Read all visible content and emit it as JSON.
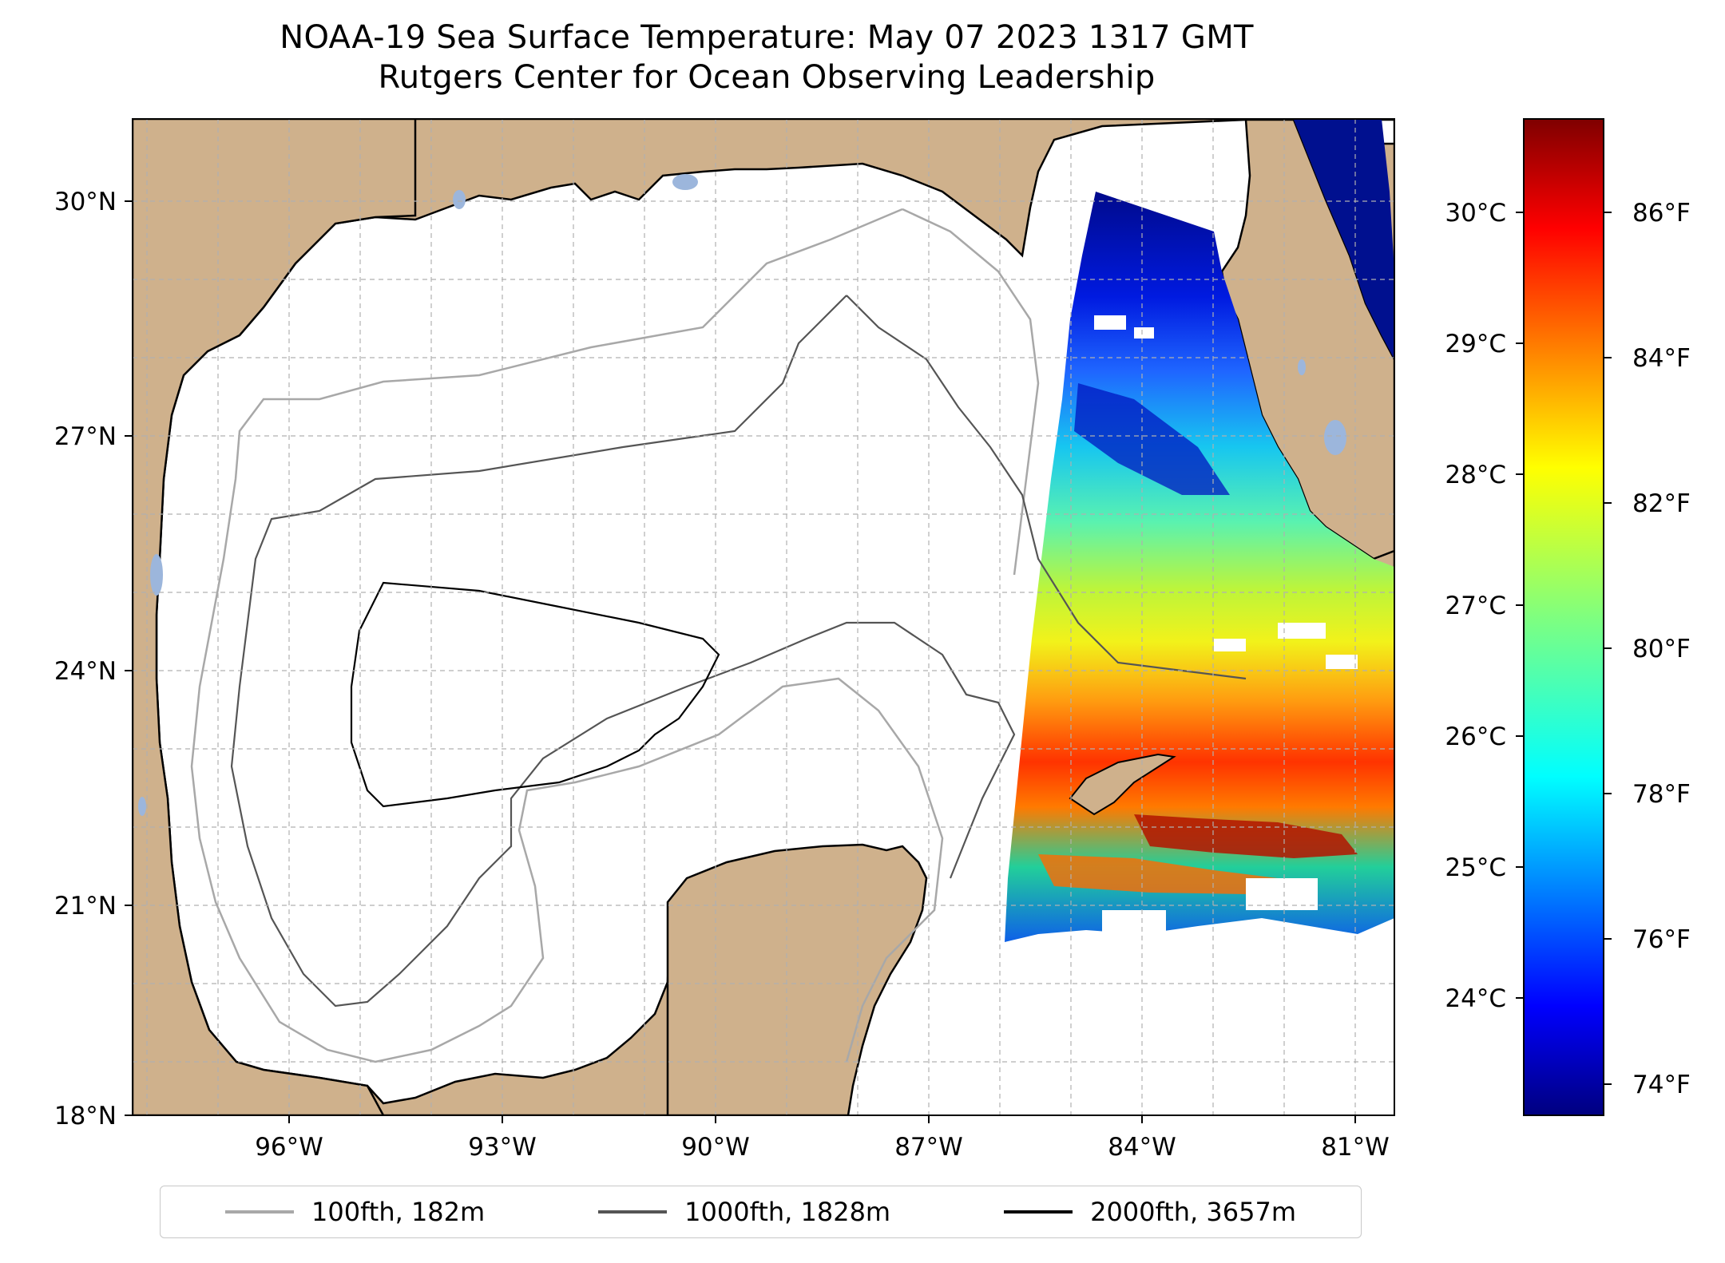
{
  "title": {
    "line1": "NOAA-19 Sea Surface Temperature: May 07 2023 1317 GMT",
    "line2": "Rutgers Center for Ocean Observing Leadership"
  },
  "map": {
    "lat_ticks": [
      "30°N",
      "27°N",
      "24°N",
      "21°N",
      "18°N"
    ],
    "lon_ticks": [
      "96°W",
      "93°W",
      "90°W",
      "87°W",
      "84°W",
      "81°W"
    ],
    "extent": {
      "lon_min": -98,
      "lon_max": -80.3,
      "lat_min": 18,
      "lat_max": 31
    },
    "colors": {
      "land": "#cfb18c",
      "lakes": "#9cb6dc",
      "ocean": "#ffffff"
    }
  },
  "colorbar": {
    "celsius_ticks": [
      "30°C",
      "29°C",
      "28°C",
      "27°C",
      "26°C",
      "25°C",
      "24°C"
    ],
    "fahrenheit_ticks": [
      "86°F",
      "84°F",
      "82°F",
      "80°F",
      "78°F",
      "76°F",
      "74°F"
    ],
    "colormap": "jet",
    "range_f": [
      73.5,
      87.2
    ]
  },
  "legend": {
    "items": [
      {
        "label": "100fth, 182m",
        "color": "#a8a8a8"
      },
      {
        "label": "1000fth, 1828m",
        "color": "#555555"
      },
      {
        "label": "2000fth, 3657m",
        "color": "#000000"
      }
    ]
  }
}
